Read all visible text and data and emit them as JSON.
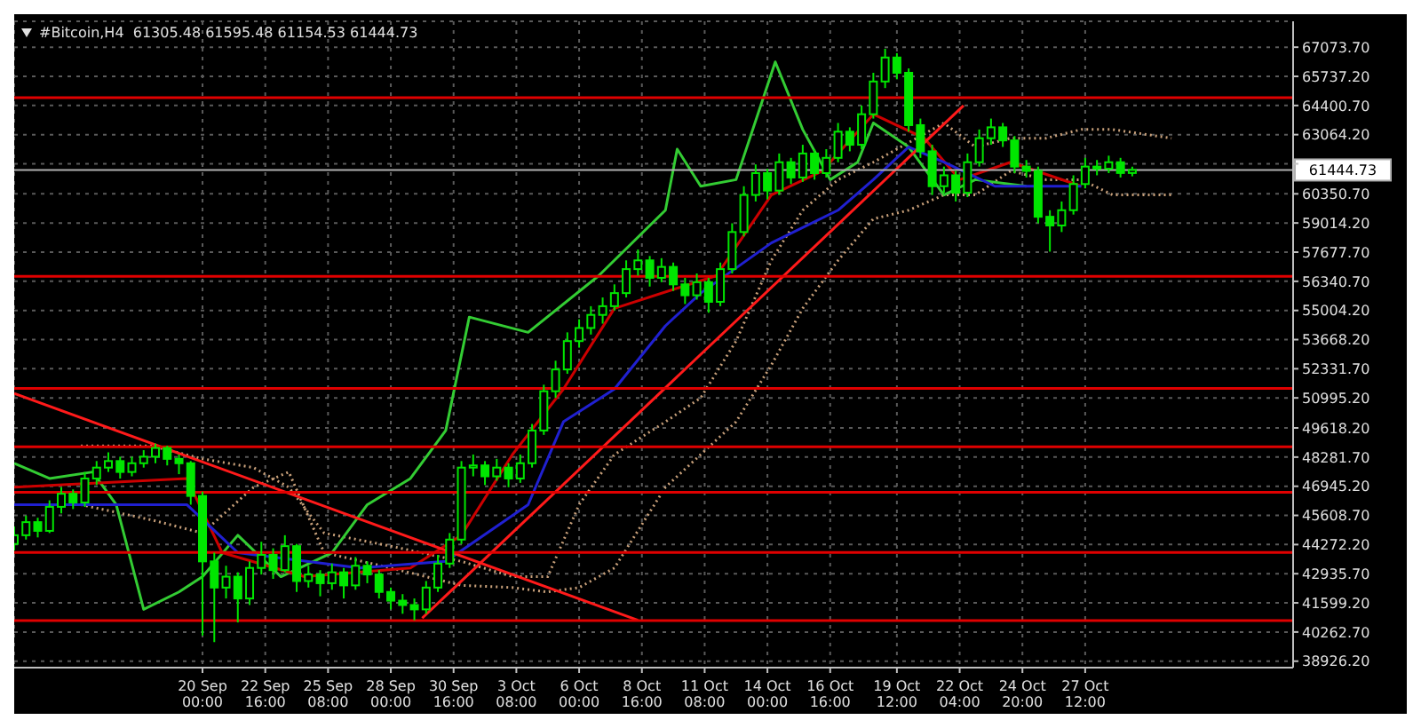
{
  "chart_data": {
    "type": "candlestick",
    "title": "#Bitcoin,H4  61305.48 61595.48 61154.53 61444.73",
    "color": "#00e600",
    "x": [
      "--09-12T00:00",
      "--09-12T12:00",
      "--09-13T00:00",
      "--09-13T12:00",
      "--09-14T00:00",
      "--09-14T12:00",
      "--09-15T00:00",
      "--09-15T12:00",
      "--09-16T00:00",
      "--09-16T12:00",
      "--09-17T00:00",
      "--09-17T12:00",
      "--09-18T00:00",
      "--09-18T12:00",
      "--09-19T00:00",
      "--09-19T12:00",
      "--09-20T00:00",
      "--09-20T12:00",
      "--09-21T00:00",
      "--09-21T12:00",
      "--09-22T00:00",
      "--09-22T12:00",
      "--09-23T00:00",
      "--09-23T12:00",
      "--09-24T00:00",
      "--09-24T12:00",
      "--09-25T00:00",
      "--09-25T12:00",
      "--09-26T00:00",
      "--09-26T12:00",
      "--09-27T00:00",
      "--09-27T12:00",
      "--09-28T00:00",
      "--09-28T12:00",
      "--09-29T00:00",
      "--09-29T12:00",
      "--09-30T00:00",
      "--09-30T12:00",
      "--10-01T00:00",
      "--10-01T12:00",
      "--10-02T00:00",
      "--10-02T12:00",
      "--10-03T00:00",
      "--10-03T12:00",
      "--10-04T00:00",
      "--10-04T12:00",
      "--10-05T00:00",
      "--10-05T12:00",
      "--10-06T00:00",
      "--10-06T12:00",
      "--10-07T00:00",
      "--10-07T12:00",
      "--10-08T00:00",
      "--10-08T12:00",
      "--10-09T00:00",
      "--10-09T12:00",
      "--10-10T00:00",
      "--10-10T12:00",
      "--10-11T00:00",
      "--10-11T12:00",
      "--10-12T00:00",
      "--10-12T12:00",
      "--10-13T00:00",
      "--10-13T12:00",
      "--10-14T00:00",
      "--10-14T12:00",
      "--10-15T00:00",
      "--10-15T12:00",
      "--10-16T00:00",
      "--10-16T12:00",
      "--10-17T00:00",
      "--10-17T12:00",
      "--10-18T00:00",
      "--10-18T12:00",
      "--10-19T00:00",
      "--10-19T12:00",
      "--10-20T00:00",
      "--10-20T12:00",
      "--10-21T00:00",
      "--10-21T12:00",
      "--10-22T00:00",
      "--10-22T12:00",
      "--10-23T00:00",
      "--10-23T12:00",
      "--10-24T00:00",
      "--10-24T12:00",
      "--10-25T00:00",
      "--10-25T12:00",
      "--10-26T00:00",
      "--10-26T12:00",
      "--10-27T00:00",
      "--10-27T12:00",
      "--10-28T00:00",
      "--10-28T12:00",
      "--10-29T00:00",
      "--10-29T12:00"
    ],
    "ohlc": [
      [
        44300,
        45100,
        44000,
        44700
      ],
      [
        44700,
        45600,
        44500,
        45300
      ],
      [
        45300,
        45500,
        44600,
        44900
      ],
      [
        44900,
        46300,
        44800,
        46000
      ],
      [
        46000,
        46900,
        45700,
        46600
      ],
      [
        46600,
        46800,
        45900,
        46200
      ],
      [
        46200,
        47600,
        46000,
        47300
      ],
      [
        47300,
        48100,
        47000,
        47800
      ],
      [
        47800,
        48500,
        47600,
        48100
      ],
      [
        48100,
        48300,
        47300,
        47600
      ],
      [
        47600,
        48300,
        47400,
        48000
      ],
      [
        48000,
        48600,
        47800,
        48300
      ],
      [
        48300,
        48900,
        48000,
        48700
      ],
      [
        48700,
        48800,
        47900,
        48200
      ],
      [
        48200,
        48400,
        47500,
        48000
      ],
      [
        48000,
        48100,
        46100,
        46500
      ],
      [
        46500,
        46700,
        40100,
        43500
      ],
      [
        43500,
        43900,
        39800,
        42300
      ],
      [
        42300,
        43300,
        41800,
        42800
      ],
      [
        42800,
        43000,
        40700,
        41800
      ],
      [
        41800,
        43500,
        41500,
        43200
      ],
      [
        43200,
        44400,
        42900,
        43800
      ],
      [
        43800,
        44100,
        42700,
        43100
      ],
      [
        43100,
        44700,
        43000,
        44200
      ],
      [
        44200,
        44300,
        42100,
        42600
      ],
      [
        42600,
        43300,
        42300,
        42900
      ],
      [
        42900,
        43100,
        41900,
        42500
      ],
      [
        42500,
        43400,
        42200,
        43000
      ],
      [
        43000,
        43200,
        41800,
        42400
      ],
      [
        42400,
        43700,
        42200,
        43300
      ],
      [
        43300,
        43500,
        42500,
        42900
      ],
      [
        42900,
        43100,
        41800,
        42100
      ],
      [
        42100,
        42300,
        41300,
        41700
      ],
      [
        41700,
        42000,
        41100,
        41500
      ],
      [
        41500,
        41800,
        40800,
        41300
      ],
      [
        41300,
        42600,
        41100,
        42300
      ],
      [
        42300,
        43800,
        42100,
        43400
      ],
      [
        43400,
        44800,
        43200,
        44500
      ],
      [
        44500,
        48100,
        44300,
        47800
      ],
      [
        47800,
        48400,
        47400,
        47900
      ],
      [
        47900,
        48100,
        47000,
        47400
      ],
      [
        47400,
        48200,
        47200,
        47800
      ],
      [
        47800,
        48000,
        46900,
        47300
      ],
      [
        47300,
        48400,
        47100,
        48000
      ],
      [
        48000,
        49800,
        47800,
        49500
      ],
      [
        49500,
        51600,
        49300,
        51300
      ],
      [
        51300,
        52700,
        51000,
        52300
      ],
      [
        52300,
        54000,
        52100,
        53600
      ],
      [
        53600,
        54600,
        53300,
        54200
      ],
      [
        54200,
        55200,
        53900,
        54800
      ],
      [
        54800,
        55600,
        54400,
        55200
      ],
      [
        55200,
        56200,
        55000,
        55800
      ],
      [
        55800,
        57300,
        55600,
        56900
      ],
      [
        56900,
        57800,
        56600,
        57300
      ],
      [
        57300,
        57500,
        56100,
        56500
      ],
      [
        56500,
        57400,
        56300,
        57000
      ],
      [
        57000,
        57200,
        55900,
        56200
      ],
      [
        56200,
        56500,
        55300,
        55700
      ],
      [
        55700,
        56700,
        55500,
        56300
      ],
      [
        56300,
        56500,
        54900,
        55400
      ],
      [
        55400,
        57200,
        55200,
        56900
      ],
      [
        56900,
        59000,
        56700,
        58600
      ],
      [
        58600,
        60700,
        58400,
        60300
      ],
      [
        60300,
        61700,
        60000,
        61300
      ],
      [
        61300,
        61500,
        60100,
        60500
      ],
      [
        60500,
        62200,
        60300,
        61800
      ],
      [
        61800,
        62000,
        60800,
        61100
      ],
      [
        61100,
        62600,
        60900,
        62200
      ],
      [
        62200,
        62400,
        61000,
        61300
      ],
      [
        61300,
        62400,
        61100,
        62000
      ],
      [
        62000,
        63600,
        61800,
        63200
      ],
      [
        63200,
        63400,
        62300,
        62600
      ],
      [
        62600,
        64400,
        62400,
        64000
      ],
      [
        64000,
        65900,
        63800,
        65500
      ],
      [
        65500,
        67000,
        65200,
        66600
      ],
      [
        66600,
        66800,
        65600,
        65900
      ],
      [
        65900,
        66100,
        63200,
        63500
      ],
      [
        63500,
        63800,
        62000,
        62300
      ],
      [
        62300,
        62600,
        60300,
        60700
      ],
      [
        60700,
        61600,
        60400,
        61200
      ],
      [
        61200,
        61400,
        60000,
        60400
      ],
      [
        60400,
        62200,
        60200,
        61800
      ],
      [
        61800,
        63300,
        61600,
        62900
      ],
      [
        62900,
        63800,
        62600,
        63400
      ],
      [
        63400,
        63600,
        62500,
        62800
      ],
      [
        62800,
        63000,
        61300,
        61600
      ],
      [
        61600,
        61900,
        61100,
        61400
      ],
      [
        61400,
        61600,
        59000,
        59300
      ],
      [
        59300,
        59600,
        57700,
        58900
      ],
      [
        58900,
        60000,
        58600,
        59600
      ],
      [
        59600,
        61200,
        59400,
        60800
      ],
      [
        60800,
        62000,
        60600,
        61600
      ],
      [
        61600,
        61900,
        61200,
        61500
      ],
      [
        61500,
        62100,
        61300,
        61800
      ],
      [
        61800,
        62000,
        61100,
        61305.48
      ],
      [
        61305.48,
        61595.48,
        61154.53,
        61444.73
      ]
    ],
    "series": [
      {
        "type": "line",
        "line_style": "dotted",
        "color": "#c8a07a",
        "x": [
          "--09-14T20:00",
          "--09-17T20:00",
          "--09-20T00:00",
          "--09-22T04:00",
          "--09-23T16:00",
          "--09-25T04:00",
          "--09-28T00:00",
          "--10-01T00:00",
          "--10-03T04:00",
          "--10-04T16:00",
          "--10-06T00:00",
          "--10-07T12:00",
          "--10-09T16:00",
          "--10-11T04:00",
          "--10-12T16:00",
          "--10-14T04:00",
          "--10-15T12:00",
          "--10-17T00:00",
          "--10-18T12:00",
          "--10-20T00:00",
          "--10-21T12:00",
          "--10-22T20:00",
          "--10-24T08:00",
          "--10-25T20:00",
          "--10-27T08:00",
          "--10-28T16:00",
          "--10-31T04:00"
        ],
        "values": [
          46100,
          45400,
          44800,
          46900,
          47600,
          43900,
          43200,
          42400,
          42300,
          42100,
          42300,
          43200,
          46900,
          48400,
          49900,
          52500,
          55100,
          57300,
          59200,
          59600,
          60300,
          60300,
          61400,
          61000,
          61000,
          60300,
          60300
        ]
      },
      {
        "type": "line",
        "line_style": "dotted",
        "color": "#c8a07a",
        "x": [
          "--09-14T20:00",
          "--09-17T20:00",
          "--09-20T00:00",
          "--09-22T04:00",
          "--09-23T16:00",
          "--09-25T04:00",
          "--09-28T00:00",
          "--10-01T00:00",
          "--10-03T04:00",
          "--10-04T16:00",
          "--10-06T00:00",
          "--10-07T12:00",
          "--10-09T16:00",
          "--10-11T04:00",
          "--10-12T16:00",
          "--10-14T04:00",
          "--10-15T12:00",
          "--10-17T00:00",
          "--10-18T12:00",
          "--10-20T00:00",
          "--10-21T12:00",
          "--10-22T20:00",
          "--10-24T08:00",
          "--10-25T20:00",
          "--10-27T08:00",
          "--10-28T16:00",
          "--10-31T04:00"
        ],
        "values": [
          48800,
          48800,
          48200,
          47800,
          46900,
          44800,
          44200,
          43500,
          42800,
          42800,
          46100,
          48400,
          49900,
          51000,
          53600,
          57300,
          59600,
          61000,
          61800,
          null,
          63600,
          62500,
          62900,
          62900,
          63300,
          63300,
          62900
        ]
      },
      {
        "type": "line",
        "color": "#33cc33",
        "x": [
          "--09-12T00:00",
          "--09-13T12:00",
          "--09-15T08:00",
          "--09-16T08:00",
          "--09-17T12:00",
          "--09-19T00:00",
          "--09-20T00:00",
          "--09-21T12:00",
          "--09-23T08:00",
          "--09-25T12:00",
          "--09-27T00:00",
          "--09-28T20:00",
          "--09-30T08:00",
          "--10-01T08:00",
          "--10-03T20:00",
          "--10-06T20:00",
          "--10-09T16:00",
          "--10-10T04:00",
          "--10-11T04:00",
          "--10-12T16:00",
          "--10-14T08:00",
          "--10-15T12:00",
          "--10-16T16:00",
          "--10-17T20:00",
          "--10-18T12:00",
          "--10-20T00:00",
          "--10-21T12:00",
          "--10-22T20:00",
          "--10-25T00:00"
        ],
        "values": [
          48000,
          47300,
          47600,
          46100,
          41300,
          42100,
          42800,
          44700,
          42800,
          43900,
          46100,
          47300,
          49500,
          54700,
          54000,
          56600,
          59600,
          62400,
          60700,
          61000,
          66400,
          63300,
          61000,
          61800,
          63600,
          62500,
          60300,
          61000,
          60700
        ]
      },
      {
        "type": "line",
        "color": "#cc0000",
        "x": [
          "--09-12T00:00",
          "--09-19T08:00",
          "--09-20T20:00",
          "--09-24T08:00",
          "--09-28T20:00",
          "--10-01T00:00",
          "--10-03T04:00",
          "--10-05T08:00",
          "--10-07T12:00",
          "--10-11T20:00",
          "--10-14T04:00",
          "--10-16T08:00",
          "--10-18T12:00",
          "--10-20T16:00",
          "--10-22T04:00",
          "--10-24T08:00",
          "--10-27T08:00"
        ],
        "values": [
          46900,
          47300,
          43900,
          42800,
          43200,
          44700,
          48400,
          51400,
          55100,
          56600,
          60300,
          61400,
          64000,
          62900,
          61000,
          61800,
          60700
        ]
      },
      {
        "type": "line",
        "color": "#2020d0",
        "x": [
          "--09-12T00:00",
          "--09-19T08:00",
          "--09-21T12:00",
          "--09-26T16:00",
          "--09-30T08:00",
          "--10-03T20:00",
          "--10-05T08:00",
          "--10-07T12:00",
          "--10-09T16:00",
          "--10-11T04:00",
          "--10-14T04:00",
          "--10-17T00:00",
          "--10-18T12:00",
          "--10-20T00:00",
          "--10-21T12:00",
          "--10-23T16:00",
          "--10-27T08:00"
        ],
        "values": [
          46100,
          46100,
          43900,
          43200,
          43500,
          46100,
          49900,
          51400,
          54300,
          55800,
          58100,
          59600,
          61000,
          62500,
          61800,
          60700,
          60700
        ]
      },
      {
        "type": "line",
        "color": "#ff1a1a",
        "x": [
          "--09-12T00:00",
          "--10-08T12:00"
        ],
        "values": [
          51200,
          40800
        ]
      },
      {
        "type": "line",
        "color": "#ff1a1a",
        "x": [
          "--09-29T08:00",
          "--10-22T08:00"
        ],
        "values": [
          40900,
          64400
        ]
      }
    ],
    "xlim": [
      "--09-12T00:00",
      "--11-05T08:00"
    ],
    "xticks": [
      {
        "value": "--09-20T00:00",
        "label": "20 Sep 00:00"
      },
      {
        "value": "--09-22T16:00",
        "label": "22 Sep 16:00"
      },
      {
        "value": "--09-25T08:00",
        "label": "25 Sep 08:00"
      },
      {
        "value": "--09-28T00:00",
        "label": "28 Sep 00:00"
      },
      {
        "value": "--09-30T16:00",
        "label": "30 Sep 16:00"
      },
      {
        "value": "--10-03T08:00",
        "label": "3 Oct 08:00"
      },
      {
        "value": "--10-06T00:00",
        "label": "6 Oct 00:00"
      },
      {
        "value": "--10-08T16:00",
        "label": "8 Oct 16:00"
      },
      {
        "value": "--10-11T08:00",
        "label": "11 Oct 08:00"
      },
      {
        "value": "--10-14T00:00",
        "label": "14 Oct 00:00"
      },
      {
        "value": "--10-16T16:00",
        "label": "16 Oct 16:00"
      },
      {
        "value": "--10-19T12:00",
        "label": "19 Oct 12:00"
      },
      {
        "value": "--10-22T04:00",
        "label": "22 Oct 04:00"
      },
      {
        "value": "--10-24T20:00",
        "label": "24 Oct 20:00"
      },
      {
        "value": "--10-27T12:00",
        "label": "27 Oct 12:00"
      }
    ],
    "ylim": [
      38630,
      68260
    ],
    "yticks": [
      {
        "value": 38926.2,
        "label": "38926.20"
      },
      {
        "value": 40262.7,
        "label": "40262.70"
      },
      {
        "value": 41599.2,
        "label": "41599.20"
      },
      {
        "value": 42935.7,
        "label": "42935.70"
      },
      {
        "value": 44272.2,
        "label": "44272.20"
      },
      {
        "value": 45608.7,
        "label": "45608.70"
      },
      {
        "value": 46945.2,
        "label": "46945.20"
      },
      {
        "value": 48281.7,
        "label": "48281.70"
      },
      {
        "value": 49618.2,
        "label": "49618.20"
      },
      {
        "value": 50995.2,
        "label": "50995.20"
      },
      {
        "value": 52331.7,
        "label": "52331.70"
      },
      {
        "value": 53668.2,
        "label": "53668.20"
      },
      {
        "value": 55004.2,
        "label": "55004.20"
      },
      {
        "value": 56340.7,
        "label": "56340.70"
      },
      {
        "value": 57677.7,
        "label": "57677.70"
      },
      {
        "value": 59014.2,
        "label": "59014.20"
      },
      {
        "value": 60350.7,
        "label": "60350.70"
      },
      {
        "value": 61727.7,
        "label": null
      },
      {
        "value": 63064.2,
        "label": "63064.20"
      },
      {
        "value": 64400.7,
        "label": "64400.70"
      },
      {
        "value": 65737.2,
        "label": "65737.20"
      },
      {
        "value": 67073.7,
        "label": "67073.70"
      }
    ],
    "grid": true,
    "ref_lines": [
      {
        "axis": "y",
        "value": 64764,
        "color": "#e00000"
      },
      {
        "axis": "y",
        "value": 56573,
        "color": "#e00000"
      },
      {
        "axis": "y",
        "value": 51435,
        "color": "#e00000"
      },
      {
        "axis": "y",
        "value": 48755,
        "color": "#e00000"
      },
      {
        "axis": "y",
        "value": 46670,
        "color": "#e00000"
      },
      {
        "axis": "y",
        "value": 43915,
        "color": "#e00000"
      },
      {
        "axis": "y",
        "value": 40788,
        "color": "#e00000"
      },
      {
        "axis": "y",
        "value": 61444.73,
        "label": "61444.73",
        "color": "#b0b0b0"
      }
    ]
  }
}
